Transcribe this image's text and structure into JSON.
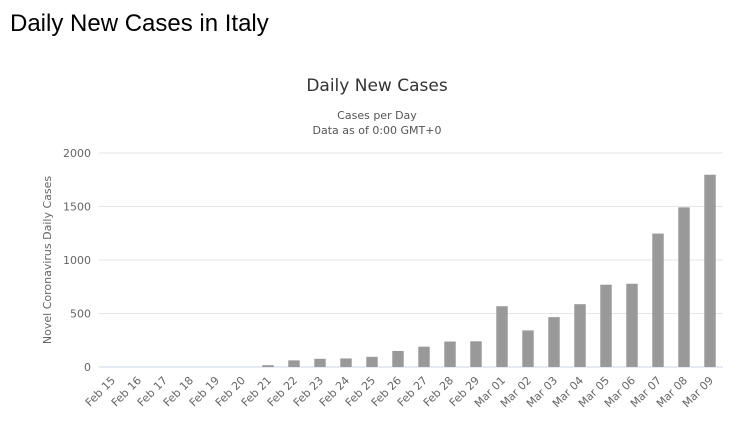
{
  "page": {
    "title": "Daily New Cases in Italy"
  },
  "chart_data": {
    "type": "bar",
    "title": "Daily New Cases",
    "subtitle": "Cases per Day",
    "subtitle2": "Data as of 0:00 GMT+0",
    "xlabel": "",
    "ylabel": "Novel Coronavirus Daily Cases",
    "ylim": [
      0,
      2000
    ],
    "yticks": [
      0,
      500,
      1000,
      1500,
      2000
    ],
    "grid": true,
    "legend": "none",
    "bar_color": "#999999",
    "categories": [
      "Feb 15",
      "Feb 16",
      "Feb 17",
      "Feb 18",
      "Feb 19",
      "Feb 20",
      "Feb 21",
      "Feb 22",
      "Feb 23",
      "Feb 24",
      "Feb 25",
      "Feb 26",
      "Feb 27",
      "Feb 28",
      "Feb 29",
      "Mar 01",
      "Mar 02",
      "Mar 03",
      "Mar 04",
      "Mar 05",
      "Mar 06",
      "Mar 07",
      "Mar 08",
      "Mar 09"
    ],
    "values": [
      0,
      0,
      0,
      0,
      0,
      0,
      17,
      62,
      77,
      80,
      95,
      150,
      190,
      238,
      240,
      568,
      342,
      466,
      587,
      769,
      778,
      1247,
      1492,
      1797
    ]
  }
}
